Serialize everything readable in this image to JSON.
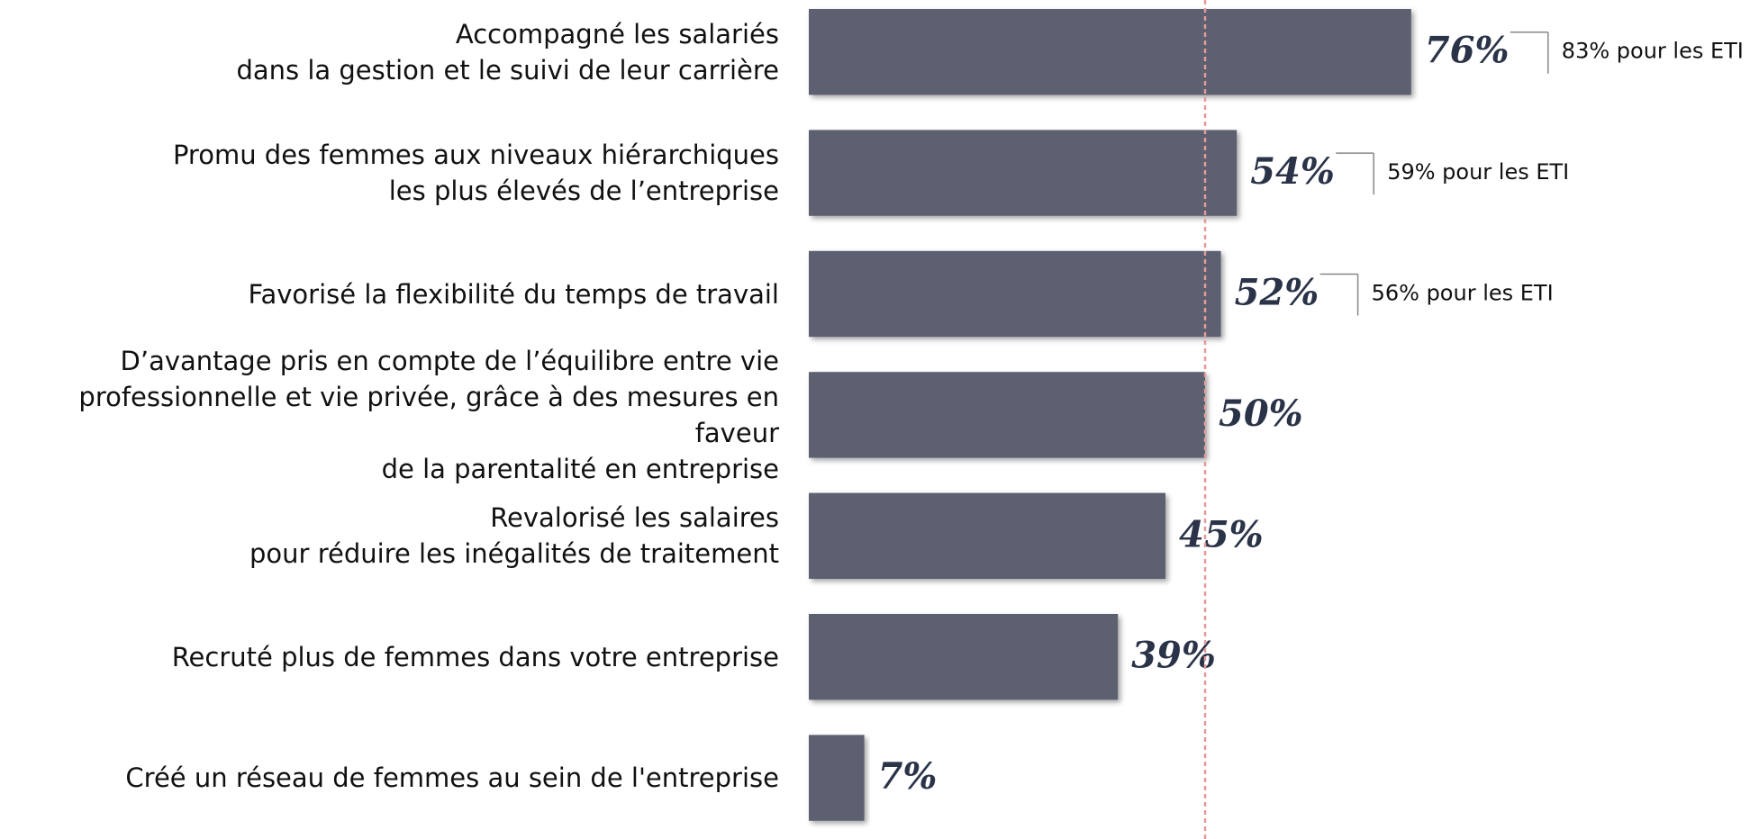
{
  "chart_data": {
    "type": "barh",
    "categories": [
      "Accompagné les salariés\ndans la gestion et le suivi de leur carrière",
      "Promu des femmes aux niveaux hiérarchiques\nles plus élevés de l’entreprise",
      "Favorisé la flexibilité du temps de travail",
      "D’avantage pris en compte de l’équilibre entre vie\nprofessionnelle et vie privée, grâce à des mesures en faveur\nde la parentalité en entreprise",
      "Revalorisé les salaires\npour réduire les inégalités de traitement",
      "Recruté plus de femmes dans votre entreprise",
      "Créé un réseau de femmes au sein de l'entreprise"
    ],
    "values": [
      76,
      54,
      52,
      50,
      45,
      39,
      7
    ],
    "value_labels": [
      "76%",
      "54%",
      "52%",
      "50%",
      "45%",
      "39%",
      "7%"
    ],
    "notes": [
      "83% pour les ETI",
      "59% pour les ETI",
      "56% pour les ETI",
      null,
      null,
      null,
      null
    ],
    "color": "#5c6070",
    "reference_line": 50,
    "xlim": [
      0,
      100
    ]
  }
}
